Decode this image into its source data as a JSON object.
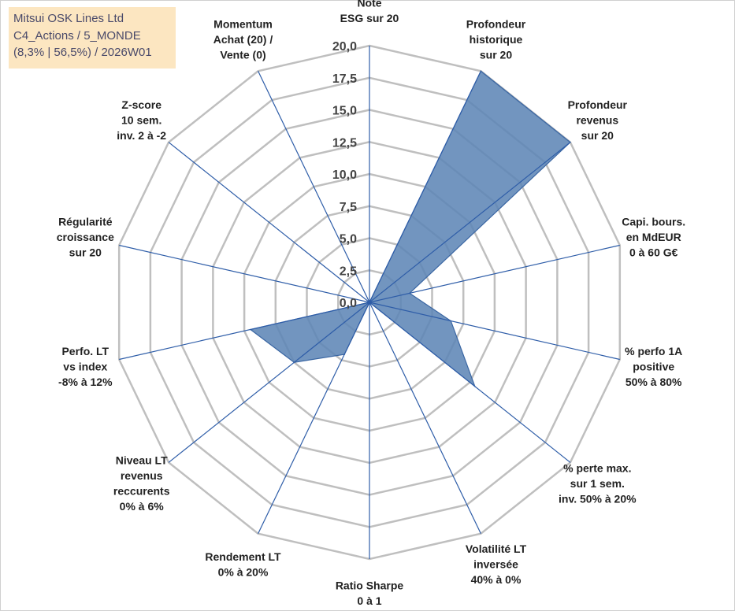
{
  "title_box": {
    "line1": "Mitsui OSK Lines Ltd",
    "line2": "C4_Actions / 5_MONDE",
    "line3": "(8,3% | 56,5%) / 2026W01"
  },
  "colors": {
    "grid": "#bfbfbf",
    "spoke": "#2e5da8",
    "fill": "#5f86b6",
    "stroke": "#3a66a3",
    "title_bg": "#fce6c1"
  },
  "chart_data": {
    "type": "radar",
    "rmin": 0,
    "rmax": 20,
    "tick_labels": [
      "0,0",
      "2,5",
      "5,0",
      "7,5",
      "10,0",
      "12,5",
      "15,0",
      "17,5",
      "20,0"
    ],
    "categories": [
      [
        "Note",
        "ESG sur 20"
      ],
      [
        "Profondeur",
        "historique",
        "sur 20"
      ],
      [
        "Profondeur",
        "revenus",
        "sur 20"
      ],
      [
        "Capi. bours.",
        "en MdEUR",
        "0 à 60 G€"
      ],
      [
        "% perfo 1A",
        "positive",
        "50% à 80%"
      ],
      [
        "% perte max.",
        "sur 1 sem.",
        "inv. 50% à 20%"
      ],
      [
        "Volatilité LT",
        "inversée",
        "40% à 0%"
      ],
      [
        "Ratio Sharpe",
        "0 à 1"
      ],
      [
        "Rendement LT",
        "0% à 20%"
      ],
      [
        "Niveau LT",
        "revenus",
        "reccurents",
        "0% à 6%"
      ],
      [
        "Perfo. LT",
        "vs index",
        "-8% à 12%"
      ],
      [
        "Régularité",
        "croissance",
        "sur 20"
      ],
      [
        "Z-score",
        "10 sem.",
        "inv. 2 à -2"
      ],
      [
        "Momentum",
        "Achat (20) /",
        "Vente (0)"
      ]
    ],
    "series": [
      {
        "values": [
          0,
          20,
          20,
          3.2,
          6.5,
          10.5,
          0,
          0,
          4.5,
          7.5,
          9.5,
          0,
          0,
          0
        ]
      }
    ]
  }
}
